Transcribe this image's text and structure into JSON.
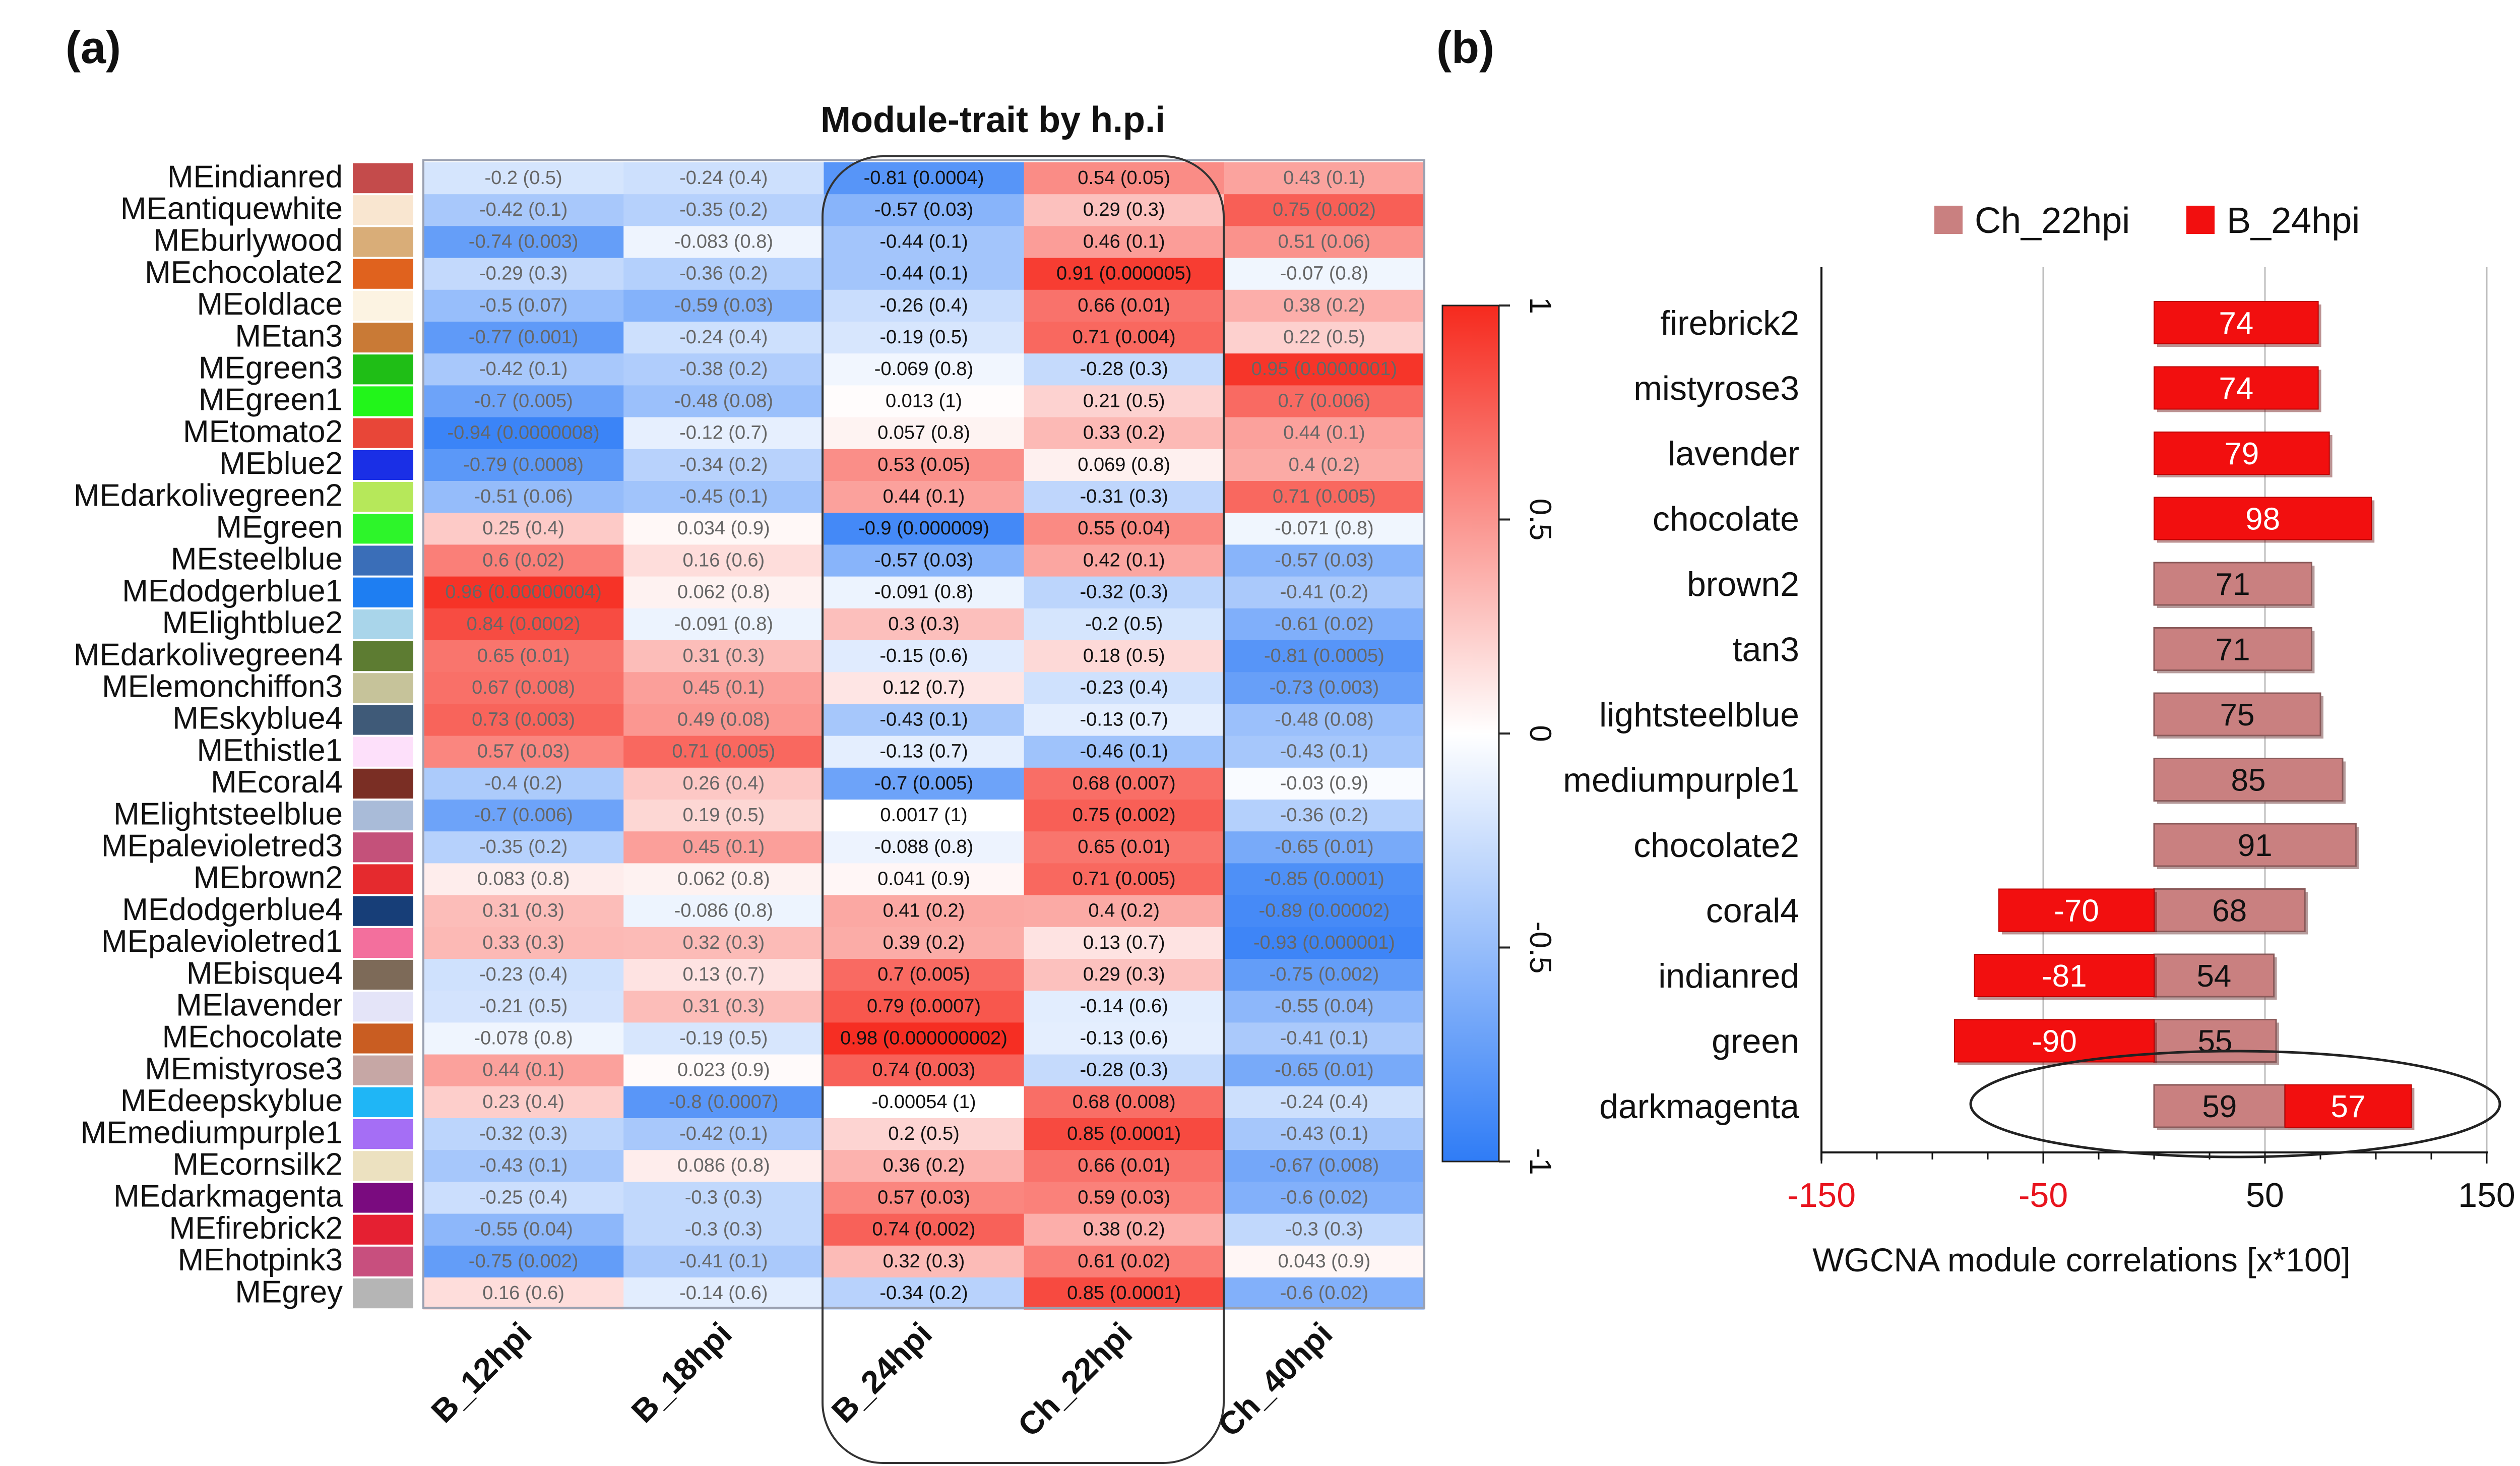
{
  "panel_a_label": "(a)",
  "panel_b_label": "(b)",
  "chart_data": [
    {
      "type": "heatmap",
      "title": "Module-trait by h.p.i",
      "columns": [
        "B_12hpi",
        "B_18hpi",
        "B_24hpi",
        "Ch_22hpi",
        "Ch_40hpi"
      ],
      "highlighted_columns": [
        "B_24hpi",
        "Ch_22hpi"
      ],
      "colorbar": {
        "range": [
          -1,
          1
        ],
        "ticks": [
          "-1",
          "-0.5",
          "0",
          "0.5",
          "1"
        ],
        "low_color": "#2f7cf6",
        "mid_color": "#ffffff",
        "high_color": "#f62a1e"
      },
      "rows": [
        {
          "module": "MEindianred",
          "color": "#c44b4b",
          "values": [
            -0.2,
            -0.24,
            -0.81,
            0.54,
            0.43
          ],
          "labels": [
            "-0.2 (0.5)",
            "-0.24 (0.4)",
            "-0.81 (0.0004)",
            "0.54 (0.05)",
            "0.43 (0.1)"
          ]
        },
        {
          "module": "MEantiquewhite",
          "color": "#f9e6d0",
          "values": [
            -0.42,
            -0.35,
            -0.57,
            0.29,
            0.75
          ],
          "labels": [
            "-0.42 (0.1)",
            "-0.35 (0.2)",
            "-0.57 (0.03)",
            "0.29 (0.3)",
            "0.75 (0.002)"
          ]
        },
        {
          "module": "MEburlywood",
          "color": "#d9ad78",
          "values": [
            -0.74,
            -0.083,
            -0.44,
            0.46,
            0.51
          ],
          "labels": [
            "-0.74 (0.003)",
            "-0.083 (0.8)",
            "-0.44 (0.1)",
            "0.46 (0.1)",
            "0.51 (0.06)"
          ]
        },
        {
          "module": "MEchocolate2",
          "color": "#e0621e",
          "values": [
            -0.29,
            -0.36,
            -0.44,
            0.91,
            -0.07
          ],
          "labels": [
            "-0.29 (0.3)",
            "-0.36 (0.2)",
            "-0.44 (0.1)",
            "0.91 (0.000005)",
            "-0.07 (0.8)"
          ]
        },
        {
          "module": "MEoldlace",
          "color": "#fcf3e2",
          "values": [
            -0.5,
            -0.59,
            -0.26,
            0.66,
            0.38
          ],
          "labels": [
            "-0.5 (0.07)",
            "-0.59 (0.03)",
            "-0.26 (0.4)",
            "0.66 (0.01)",
            "0.38 (0.2)"
          ]
        },
        {
          "module": "MEtan3",
          "color": "#c97a36",
          "values": [
            -0.77,
            -0.24,
            -0.19,
            0.71,
            0.22
          ],
          "labels": [
            "-0.77 (0.001)",
            "-0.24 (0.4)",
            "-0.19 (0.5)",
            "0.71 (0.004)",
            "0.22 (0.5)"
          ]
        },
        {
          "module": "MEgreen3",
          "color": "#1fbe16",
          "values": [
            -0.42,
            -0.38,
            -0.069,
            -0.28,
            0.95
          ],
          "labels": [
            "-0.42 (0.1)",
            "-0.38 (0.2)",
            "-0.069 (0.8)",
            "-0.28 (0.3)",
            "0.95 (0.0000001)"
          ]
        },
        {
          "module": "MEgreen1",
          "color": "#22f51a",
          "values": [
            -0.7,
            -0.48,
            0.013,
            0.21,
            0.7
          ],
          "labels": [
            "-0.7 (0.005)",
            "-0.48 (0.08)",
            "0.013 (1)",
            "0.21 (0.5)",
            "0.7 (0.006)"
          ]
        },
        {
          "module": "MEtomato2",
          "color": "#e84638",
          "values": [
            -0.94,
            -0.12,
            0.057,
            0.33,
            0.44
          ],
          "labels": [
            "-0.94 (0.0000008)",
            "-0.12 (0.7)",
            "0.057 (0.8)",
            "0.33 (0.2)",
            "0.44 (0.1)"
          ]
        },
        {
          "module": "MEblue2",
          "color": "#1a2fe6",
          "values": [
            -0.79,
            -0.34,
            0.53,
            0.069,
            0.4
          ],
          "labels": [
            "-0.79 (0.0008)",
            "-0.34 (0.2)",
            "0.53 (0.05)",
            "0.069 (0.8)",
            "0.4 (0.2)"
          ]
        },
        {
          "module": "MEdarkolivegreen2",
          "color": "#b6e85a",
          "values": [
            -0.51,
            -0.45,
            0.44,
            -0.31,
            0.71
          ],
          "labels": [
            "-0.51 (0.06)",
            "-0.45 (0.1)",
            "0.44 (0.1)",
            "-0.31 (0.3)",
            "0.71 (0.005)"
          ]
        },
        {
          "module": "MEgreen",
          "color": "#2df52a",
          "values": [
            0.25,
            0.034,
            -0.9,
            0.55,
            -0.071
          ],
          "labels": [
            "0.25 (0.4)",
            "0.034 (0.9)",
            "-0.9 (0.000009)",
            "0.55 (0.04)",
            "-0.071 (0.8)"
          ]
        },
        {
          "module": "MEsteelblue",
          "color": "#3a6eb8",
          "values": [
            0.6,
            0.16,
            -0.57,
            0.42,
            -0.57
          ],
          "labels": [
            "0.6 (0.02)",
            "0.16 (0.6)",
            "-0.57 (0.03)",
            "0.42 (0.1)",
            "-0.57 (0.03)"
          ]
        },
        {
          "module": "MEdodgerblue1",
          "color": "#1e7ef2",
          "values": [
            0.96,
            0.062,
            -0.091,
            -0.32,
            -0.41
          ],
          "labels": [
            "0.96 (0.00000004)",
            "0.062 (0.8)",
            "-0.091 (0.8)",
            "-0.32 (0.3)",
            "-0.41 (0.2)"
          ]
        },
        {
          "module": "MElightblue2",
          "color": "#a9d5ea",
          "values": [
            0.84,
            -0.091,
            0.3,
            -0.2,
            -0.61
          ],
          "labels": [
            "0.84 (0.0002)",
            "-0.091 (0.8)",
            "0.3 (0.3)",
            "-0.2 (0.5)",
            "-0.61 (0.02)"
          ]
        },
        {
          "module": "MEdarkolivegreen4",
          "color": "#5d7c32",
          "values": [
            0.65,
            0.31,
            -0.15,
            0.18,
            -0.81
          ],
          "labels": [
            "0.65 (0.01)",
            "0.31 (0.3)",
            "-0.15 (0.6)",
            "0.18 (0.5)",
            "-0.81 (0.0005)"
          ]
        },
        {
          "module": "MElemonchiffon3",
          "color": "#c6c39a",
          "values": [
            0.67,
            0.45,
            0.12,
            -0.23,
            -0.73
          ],
          "labels": [
            "0.67 (0.008)",
            "0.45 (0.1)",
            "0.12 (0.7)",
            "-0.23 (0.4)",
            "-0.73 (0.003)"
          ]
        },
        {
          "module": "MEskyblue4",
          "color": "#3f5a78",
          "values": [
            0.73,
            0.49,
            -0.43,
            -0.13,
            -0.48
          ],
          "labels": [
            "0.73 (0.003)",
            "0.49 (0.08)",
            "-0.43 (0.1)",
            "-0.13 (0.7)",
            "-0.48 (0.08)"
          ]
        },
        {
          "module": "MEthistle1",
          "color": "#fde0fa",
          "values": [
            0.57,
            0.71,
            -0.13,
            -0.46,
            -0.43
          ],
          "labels": [
            "0.57 (0.03)",
            "0.71 (0.005)",
            "-0.13 (0.7)",
            "-0.46 (0.1)",
            "-0.43 (0.1)"
          ]
        },
        {
          "module": "MEcoral4",
          "color": "#7a2e24",
          "values": [
            -0.4,
            0.26,
            -0.7,
            0.68,
            -0.03
          ],
          "labels": [
            "-0.4 (0.2)",
            "0.26 (0.4)",
            "-0.7 (0.005)",
            "0.68 (0.007)",
            "-0.03 (0.9)"
          ]
        },
        {
          "module": "MElightsteelblue",
          "color": "#a9bbd8",
          "values": [
            -0.7,
            0.19,
            0.0017,
            0.75,
            -0.36
          ],
          "labels": [
            "-0.7 (0.006)",
            "0.19 (0.5)",
            "0.0017 (1)",
            "0.75 (0.002)",
            "-0.36 (0.2)"
          ]
        },
        {
          "module": "MEpalevioletred3",
          "color": "#c4517a",
          "values": [
            -0.35,
            0.45,
            -0.088,
            0.65,
            -0.65
          ],
          "labels": [
            "-0.35 (0.2)",
            "0.45 (0.1)",
            "-0.088 (0.8)",
            "0.65 (0.01)",
            "-0.65 (0.01)"
          ]
        },
        {
          "module": "MEbrown2",
          "color": "#e52a2e",
          "values": [
            0.083,
            0.062,
            0.041,
            0.71,
            -0.85
          ],
          "labels": [
            "0.083 (0.8)",
            "0.062 (0.8)",
            "0.041 (0.9)",
            "0.71 (0.005)",
            "-0.85 (0.0001)"
          ]
        },
        {
          "module": "MEdodgerblue4",
          "color": "#173e78",
          "values": [
            0.31,
            -0.086,
            0.41,
            0.4,
            -0.89
          ],
          "labels": [
            "0.31 (0.3)",
            "-0.086 (0.8)",
            "0.41 (0.2)",
            "0.4 (0.2)",
            "-0.89 (0.00002)"
          ]
        },
        {
          "module": "MEpalevioletred1",
          "color": "#f36f9d",
          "values": [
            0.33,
            0.32,
            0.39,
            0.13,
            -0.93
          ],
          "labels": [
            "0.33 (0.3)",
            "0.32 (0.3)",
            "0.39 (0.2)",
            "0.13 (0.7)",
            "-0.93 (0.000001)"
          ]
        },
        {
          "module": "MEbisque4",
          "color": "#7d6a58",
          "values": [
            -0.23,
            0.13,
            0.7,
            0.29,
            -0.75
          ],
          "labels": [
            "-0.23 (0.4)",
            "0.13 (0.7)",
            "0.7 (0.005)",
            "0.29 (0.3)",
            "-0.75 (0.002)"
          ]
        },
        {
          "module": "MElavender",
          "color": "#e4e4f8",
          "values": [
            -0.21,
            0.31,
            0.79,
            -0.14,
            -0.55
          ],
          "labels": [
            "-0.21 (0.5)",
            "0.31 (0.3)",
            "0.79 (0.0007)",
            "-0.14 (0.6)",
            "-0.55 (0.04)"
          ]
        },
        {
          "module": "MEchocolate",
          "color": "#c95d22",
          "values": [
            -0.078,
            -0.19,
            0.98,
            -0.13,
            -0.41
          ],
          "labels": [
            "-0.078 (0.8)",
            "-0.19 (0.5)",
            "0.98 (0.000000002)",
            "-0.13 (0.6)",
            "-0.41 (0.1)"
          ]
        },
        {
          "module": "MEmistyrose3",
          "color": "#c6a7a5",
          "values": [
            0.44,
            0.023,
            0.74,
            -0.28,
            -0.65
          ],
          "labels": [
            "0.44 (0.1)",
            "0.023 (0.9)",
            "0.74 (0.003)",
            "-0.28 (0.3)",
            "-0.65 (0.01)"
          ]
        },
        {
          "module": "MEdeepskyblue",
          "color": "#1fb6f6",
          "values": [
            0.23,
            -0.8,
            -0.00054,
            0.68,
            -0.24
          ],
          "labels": [
            "0.23 (0.4)",
            "-0.8 (0.0007)",
            "-0.00054 (1)",
            "0.68 (0.008)",
            "-0.24 (0.4)"
          ]
        },
        {
          "module": "MEmediumpurple1",
          "color": "#a56ef5",
          "values": [
            -0.32,
            -0.42,
            0.2,
            0.85,
            -0.43
          ],
          "labels": [
            "-0.32 (0.3)",
            "-0.42 (0.1)",
            "0.2 (0.5)",
            "0.85 (0.0001)",
            "-0.43 (0.1)"
          ]
        },
        {
          "module": "MEcornsilk2",
          "color": "#ece1c0",
          "values": [
            -0.43,
            0.086,
            0.36,
            0.66,
            -0.67
          ],
          "labels": [
            "-0.43 (0.1)",
            "0.086 (0.8)",
            "0.36 (0.2)",
            "0.66 (0.01)",
            "-0.67 (0.008)"
          ]
        },
        {
          "module": "MEdarkmagenta",
          "color": "#7a0b7f",
          "values": [
            -0.25,
            -0.3,
            0.57,
            0.59,
            -0.6
          ],
          "labels": [
            "-0.25 (0.4)",
            "-0.3 (0.3)",
            "0.57 (0.03)",
            "0.59 (0.03)",
            "-0.6 (0.02)"
          ]
        },
        {
          "module": "MEfirebrick2",
          "color": "#e52032",
          "values": [
            -0.55,
            -0.3,
            0.74,
            0.38,
            -0.3
          ],
          "labels": [
            "-0.55 (0.04)",
            "-0.3 (0.3)",
            "0.74 (0.002)",
            "0.38 (0.2)",
            "-0.3 (0.3)"
          ]
        },
        {
          "module": "MEhotpink3",
          "color": "#c84f7e",
          "values": [
            -0.75,
            -0.41,
            0.32,
            0.61,
            0.043
          ],
          "labels": [
            "-0.75 (0.002)",
            "-0.41 (0.1)",
            "0.32 (0.3)",
            "0.61 (0.02)",
            "0.043 (0.9)"
          ]
        },
        {
          "module": "MEgrey",
          "color": "#b5b5b5",
          "values": [
            0.16,
            -0.14,
            -0.34,
            0.85,
            -0.6
          ],
          "labels": [
            "0.16 (0.6)",
            "-0.14 (0.6)",
            "-0.34 (0.2)",
            "0.85 (0.0001)",
            "-0.6 (0.02)"
          ]
        }
      ]
    },
    {
      "type": "bar",
      "orientation": "horizontal",
      "xlabel": "WGCNA module correlations [x*100]",
      "xlim": [
        -150,
        150
      ],
      "x_ticks": [
        "-150",
        "-50",
        "50",
        "150"
      ],
      "x_ticks_values": [
        -150,
        -50,
        50,
        150
      ],
      "categories": [
        "firebrick2",
        "mistyrose3",
        "lavender",
        "chocolate",
        "brown2",
        "tan3",
        "lightsteelblue",
        "mediumpurple1",
        "chocolate2",
        "coral4",
        "indianred",
        "green",
        "darkmagenta"
      ],
      "highlighted_category": "darkmagenta",
      "series": [
        {
          "name": "Ch_22hpi",
          "color": "#c98080",
          "values": [
            null,
            null,
            null,
            null,
            71,
            71,
            75,
            85,
            91,
            68,
            54,
            55,
            59
          ],
          "labels": [
            "",
            "",
            "",
            "",
            "71",
            "71",
            "75",
            "85",
            "91",
            "68",
            "54",
            "55",
            "59"
          ]
        },
        {
          "name": "B_24hpi",
          "color": "#f20f0f",
          "values": [
            74,
            74,
            79,
            98,
            null,
            null,
            null,
            null,
            null,
            -70,
            -81,
            -90,
            57
          ],
          "labels": [
            "74",
            "74",
            "79",
            "98",
            "",
            "",
            "",
            "",
            "",
            "-70",
            "-81",
            "-90",
            "57"
          ]
        }
      ]
    }
  ]
}
